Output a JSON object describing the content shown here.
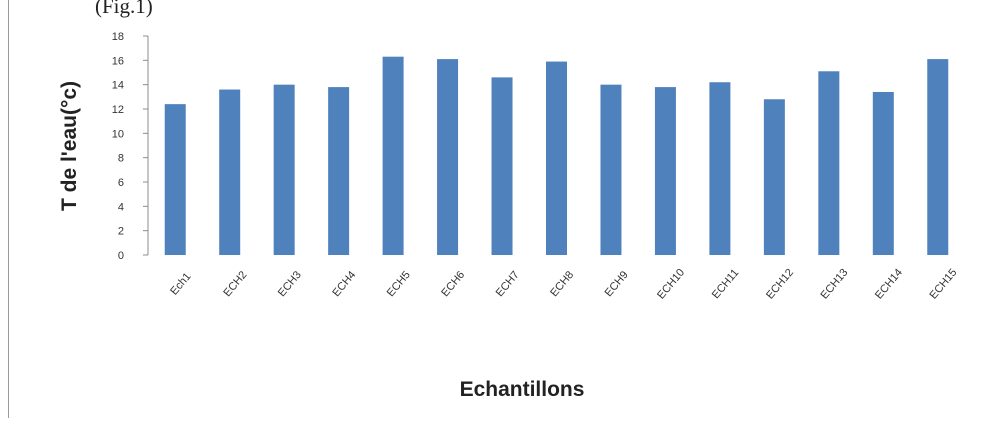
{
  "page": {
    "top_text": "(Fig.1)"
  },
  "chart_data": {
    "type": "bar",
    "title": "",
    "xlabel": "Echantillons",
    "ylabel": "T de l'eau(°c)",
    "ylim": [
      0,
      18
    ],
    "yticks": [
      0,
      2,
      4,
      6,
      8,
      10,
      12,
      14,
      16,
      18
    ],
    "grid": false,
    "legend": "none",
    "bar_color": "#4f81bd",
    "categories": [
      "Ech1",
      "ECH2",
      "ECH3",
      "ECH4",
      "ECH5",
      "ECH6",
      "ECH7",
      "ECH8",
      "ECH9",
      "ECH10",
      "ECH11",
      "ECH12",
      "ECH13",
      "ECH14",
      "ECH15"
    ],
    "values": [
      12.4,
      13.6,
      14.0,
      13.8,
      16.3,
      16.1,
      14.6,
      15.9,
      14.0,
      13.8,
      14.2,
      12.8,
      15.1,
      13.4,
      16.1
    ]
  }
}
